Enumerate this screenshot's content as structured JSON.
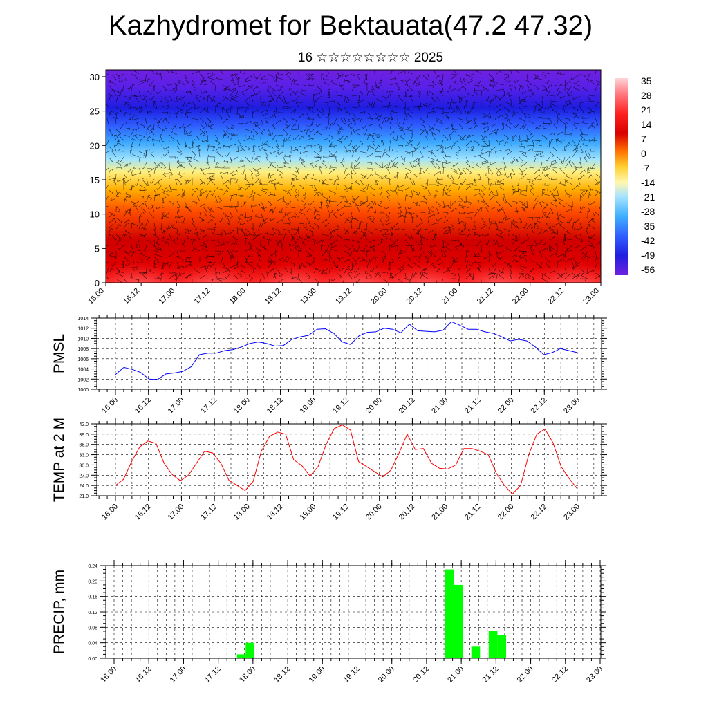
{
  "header": {
    "title": "Kazhydromet for Bektauata(47.2 47.32)",
    "subtitle": "16 ☆☆☆☆☆☆☆☆ 2025"
  },
  "colors": {
    "pmsl_line": "#0000ff",
    "temp_line": "#ff0000",
    "precip_bar": "#00ff00",
    "grid": "#000000"
  },
  "chart_data": [
    {
      "type": "heatmap",
      "title": "",
      "xlabel": "",
      "ylabel": "",
      "x_ticks": [
        "16.00",
        "16.12",
        "17.00",
        "17.12",
        "18.00",
        "18.12",
        "19.00",
        "19.12",
        "20.00",
        "20.12",
        "21.00",
        "21.12",
        "22.00",
        "22.12",
        "23.00"
      ],
      "y_ticks": [
        0,
        5,
        10,
        15,
        20,
        25,
        30
      ],
      "ylim": [
        0,
        31
      ],
      "colorbar_ticks": [
        "35",
        "28",
        "21",
        "14",
        "7",
        "0",
        "-7",
        "-14",
        "-21",
        "-28",
        "-35",
        "-42",
        "-49",
        "-56"
      ],
      "colorscale": [
        "#ffd4d8",
        "#ff2020",
        "#d80000",
        "#ff7000",
        "#ffd030",
        "#fff5a0",
        "#b0e8ff",
        "#40b0ff",
        "#3060ff",
        "#2020e0",
        "#6a1ee0"
      ],
      "overlay": "wind barbs"
    },
    {
      "type": "line",
      "ylabel": "PMSL",
      "ylim": [
        1000,
        1014
      ],
      "y_ticks": [
        1000,
        1002,
        1004,
        1006,
        1008,
        1010,
        1012,
        1014
      ],
      "x_ticks": [
        "16.00",
        "16.12",
        "17.00",
        "17.12",
        "18.00",
        "18.12",
        "19.00",
        "19.12",
        "20.00",
        "20.12",
        "21.00",
        "21.12",
        "22.00",
        "22.12",
        "23.00"
      ],
      "series": [
        {
          "values": [
            1002.9,
            1004.3,
            1003.9,
            1003.3,
            1002.0,
            1001.9,
            1003.0,
            1003.2,
            1003.5,
            1004.4,
            1006.8,
            1007.1,
            1007.1,
            1007.6,
            1007.8,
            1008.3,
            1009.0,
            1009.3,
            1009.0,
            1008.5,
            1008.6,
            1009.8,
            1010.3,
            1010.6,
            1011.8,
            1011.9,
            1011.0,
            1009.3,
            1008.8,
            1010.5,
            1011.2,
            1011.3,
            1012.0,
            1011.8,
            1011.1,
            1012.8,
            1011.5,
            1011.4,
            1011.3,
            1011.6,
            1013.3,
            1012.6,
            1011.8,
            1011.8,
            1011.3,
            1011.0,
            1010.3,
            1009.5,
            1009.8,
            1009.5,
            1008.3,
            1006.8,
            1007.2,
            1008.0,
            1007.6,
            1007.2
          ]
        }
      ]
    },
    {
      "type": "line",
      "ylabel": "TEMP at 2 M",
      "ylim": [
        21.0,
        42.0
      ],
      "y_ticks": [
        "21.0",
        "24.0",
        "27.0",
        "30.0",
        "33.0",
        "36.0",
        "39.0",
        "42.0"
      ],
      "x_ticks": [
        "16.00",
        "16.12",
        "17.00",
        "17.12",
        "18.00",
        "18.12",
        "19.00",
        "19.12",
        "20.00",
        "20.12",
        "21.00",
        "21.12",
        "22.00",
        "22.12",
        "23.00"
      ],
      "series": [
        {
          "values": [
            24.0,
            25.8,
            31.0,
            35.3,
            37.0,
            36.3,
            30.5,
            27.2,
            25.4,
            27.0,
            30.5,
            34.0,
            33.5,
            30.5,
            25.5,
            24.0,
            22.5,
            25.2,
            34.0,
            38.3,
            39.6,
            39.0,
            31.5,
            29.8,
            26.8,
            29.5,
            36.0,
            40.6,
            41.7,
            40.2,
            31.0,
            29.5,
            28.0,
            26.5,
            28.5,
            33.5,
            39.0,
            34.5,
            34.8,
            30.5,
            29.0,
            28.8,
            30.0,
            34.8,
            34.8,
            34.0,
            33.0,
            27.6,
            24.0,
            21.5,
            24.0,
            33.0,
            39.0,
            40.5,
            36.5,
            29.5,
            26.0,
            23.0
          ]
        }
      ]
    },
    {
      "type": "bar",
      "ylabel": "PRECIP, mm",
      "ylim": [
        0,
        0.24
      ],
      "y_ticks": [
        "0.00",
        "0.04",
        "0.08",
        "0.12",
        "0.16",
        "0.20",
        "0.24"
      ],
      "x_ticks": [
        "16.00",
        "16.12",
        "17.00",
        "17.12",
        "18.00",
        "18.12",
        "19.00",
        "19.12",
        "20.00",
        "20.12",
        "21.00",
        "21.12",
        "22.00",
        "22.12",
        "23.00"
      ],
      "bars": [
        {
          "t": 14,
          "value": 0.01
        },
        {
          "t": 15,
          "value": 0.04
        },
        {
          "t": 38,
          "value": 0.23
        },
        {
          "t": 39,
          "value": 0.19
        },
        {
          "t": 41,
          "value": 0.03
        },
        {
          "t": 43,
          "value": 0.07
        },
        {
          "t": 44,
          "value": 0.06
        }
      ]
    }
  ]
}
